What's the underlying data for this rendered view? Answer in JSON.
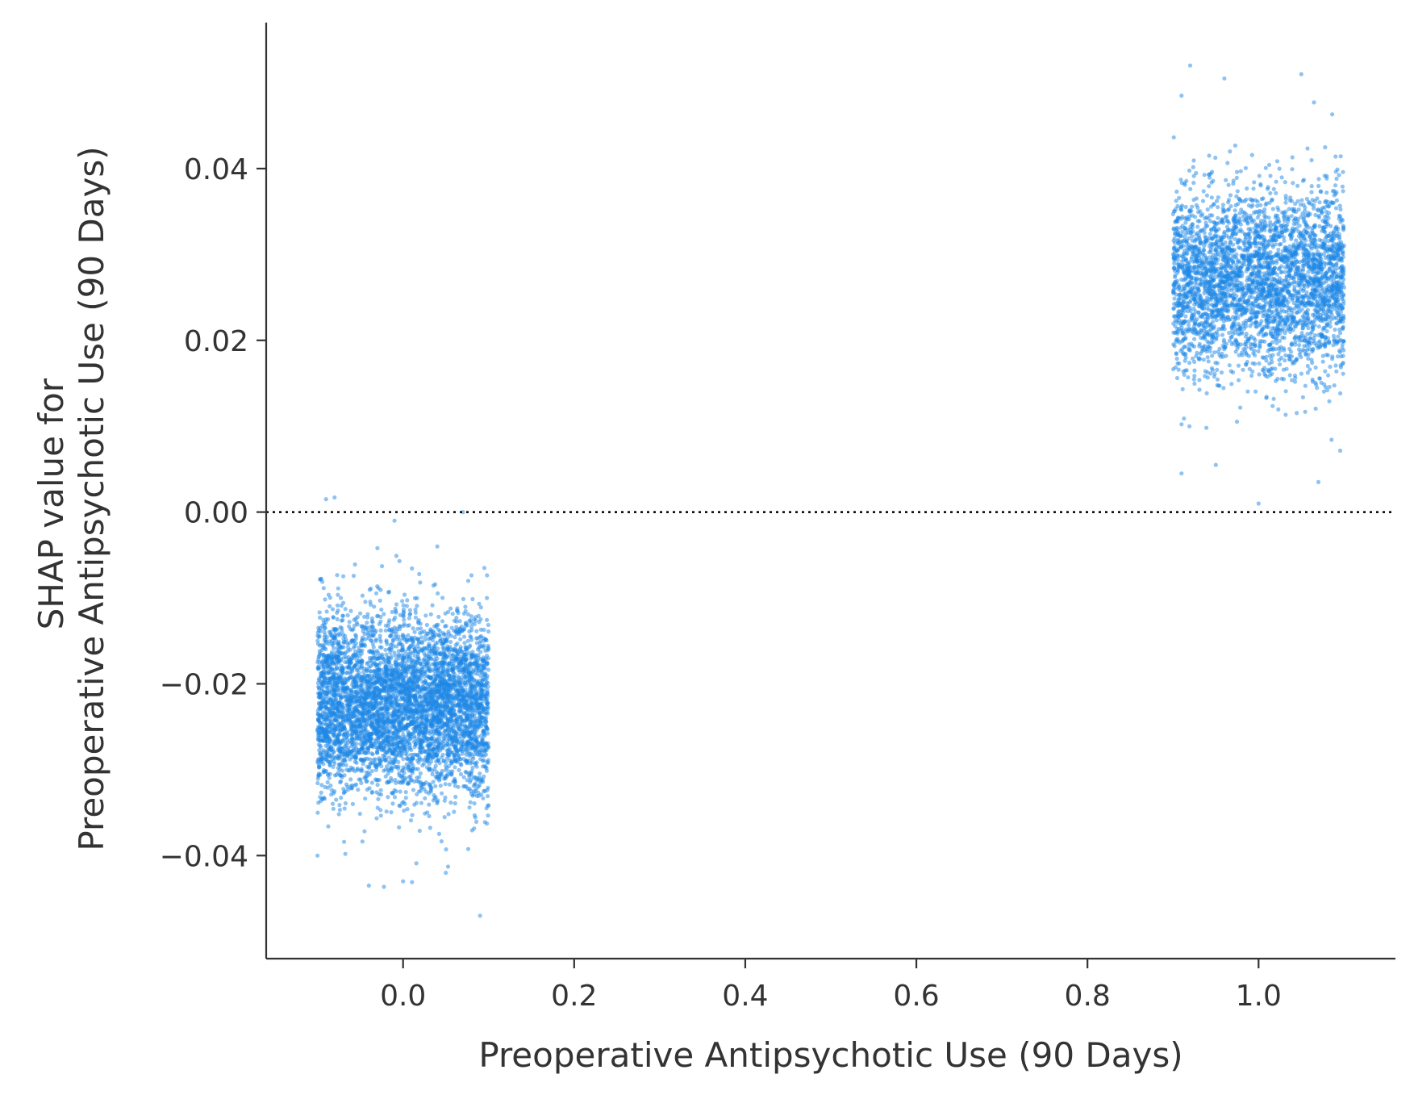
{
  "chart_data": {
    "type": "scatter",
    "xlabel": "Preoperative Antipsychotic Use (90 Days)",
    "ylabel_lines": [
      "SHAP value for",
      "Preoperative Antipsychotic Use (90 Days)"
    ],
    "xlim": [
      -0.16,
      1.16
    ],
    "ylim": [
      -0.052,
      0.057
    ],
    "xticks": [
      0.0,
      0.2,
      0.4,
      0.6,
      0.8,
      1.0
    ],
    "xtick_labels": [
      "0.0",
      "0.2",
      "0.4",
      "0.6",
      "0.8",
      "1.0"
    ],
    "yticks": [
      -0.04,
      -0.02,
      0.0,
      0.02,
      0.04
    ],
    "ytick_labels": [
      "−0.04",
      "−0.02",
      "0.00",
      "0.02",
      "0.04"
    ],
    "reference_line": {
      "y": 0.0,
      "style": "dotted",
      "color": "#000000"
    },
    "point_color": "#1E88E5",
    "grid": false,
    "series": [
      {
        "x_value": 0,
        "x_jitter": 0.1,
        "y_center": -0.0225,
        "y_range": [
          -0.047,
          0.002
        ],
        "approx_points": 5000,
        "sample_points": [
          [
            -0.09,
            0.0015
          ],
          [
            -0.08,
            0.0017
          ],
          [
            0.07,
            0.0
          ],
          [
            -0.01,
            -0.001
          ],
          [
            -0.03,
            -0.0042
          ],
          [
            0.04,
            -0.004
          ],
          [
            0.095,
            -0.0065
          ],
          [
            -0.1,
            -0.04
          ],
          [
            -0.04,
            -0.0435
          ],
          [
            0.0,
            -0.043
          ],
          [
            0.05,
            -0.042
          ],
          [
            0.09,
            -0.047
          ]
        ]
      },
      {
        "x_value": 1,
        "x_jitter": 0.1,
        "y_center": 0.027,
        "y_range": [
          0.001,
          0.052
        ],
        "approx_points": 3500,
        "sample_points": [
          [
            0.92,
            0.052
          ],
          [
            0.96,
            0.0505
          ],
          [
            1.05,
            0.051
          ],
          [
            0.91,
            0.0485
          ],
          [
            1.0,
            0.001
          ],
          [
            1.07,
            0.0035
          ],
          [
            0.91,
            0.0045
          ],
          [
            0.95,
            0.0055
          ]
        ]
      }
    ]
  }
}
